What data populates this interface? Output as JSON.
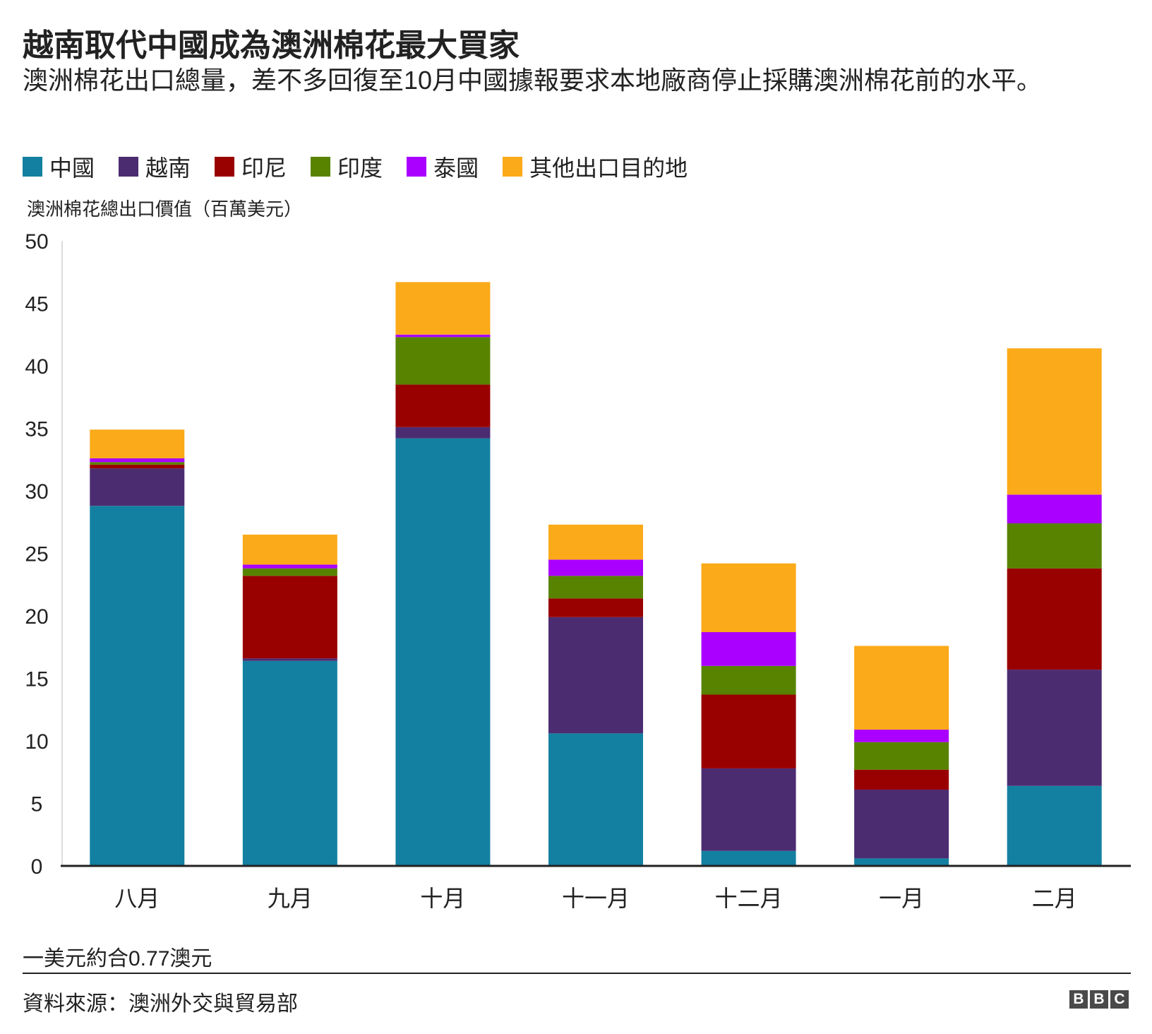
{
  "title": "越南取代中國成為澳洲棉花最大買家",
  "subtitle": "澳洲棉花出口總量，差不多回復至10月中國據報要求本地廠商停止採購澳洲棉花前的水平。",
  "note": "一美元約合0.77澳元",
  "source": "資料來源：澳洲外交與貿易部",
  "logo": {
    "letters": [
      "B",
      "B",
      "C"
    ],
    "color": "#4a4a4a"
  },
  "chart_data": {
    "type": "bar",
    "stacked": true,
    "ylabel": "澳洲棉花總出口價值（百萬美元）",
    "ylim": [
      0,
      50
    ],
    "yticks": [
      0,
      5,
      10,
      15,
      20,
      25,
      30,
      35,
      40,
      45,
      50
    ],
    "grid": false,
    "legend_position": "top-left",
    "categories": [
      "八月",
      "九月",
      "十月",
      "十一月",
      "十二月",
      "一月",
      "二月"
    ],
    "series": [
      {
        "name": "中國",
        "color": "#1380a1",
        "values": [
          28.8,
          16.4,
          34.2,
          10.6,
          1.2,
          0.6,
          6.4
        ]
      },
      {
        "name": "越南",
        "color": "#4b2c71",
        "values": [
          3.0,
          0.2,
          0.9,
          9.3,
          6.6,
          5.5,
          9.3
        ]
      },
      {
        "name": "印尼",
        "color": "#990000",
        "values": [
          0.3,
          6.6,
          3.4,
          1.5,
          5.9,
          1.6,
          8.1
        ]
      },
      {
        "name": "印度",
        "color": "#588300",
        "values": [
          0.2,
          0.6,
          3.8,
          1.8,
          2.3,
          2.2,
          3.6
        ]
      },
      {
        "name": "泰國",
        "color": "#aa00ff",
        "values": [
          0.3,
          0.3,
          0.2,
          1.3,
          2.7,
          1.0,
          2.3
        ]
      },
      {
        "name": "其他出口目的地",
        "color": "#fbaa19",
        "values": [
          2.3,
          2.4,
          4.2,
          2.8,
          5.5,
          6.7,
          11.7
        ]
      }
    ]
  }
}
